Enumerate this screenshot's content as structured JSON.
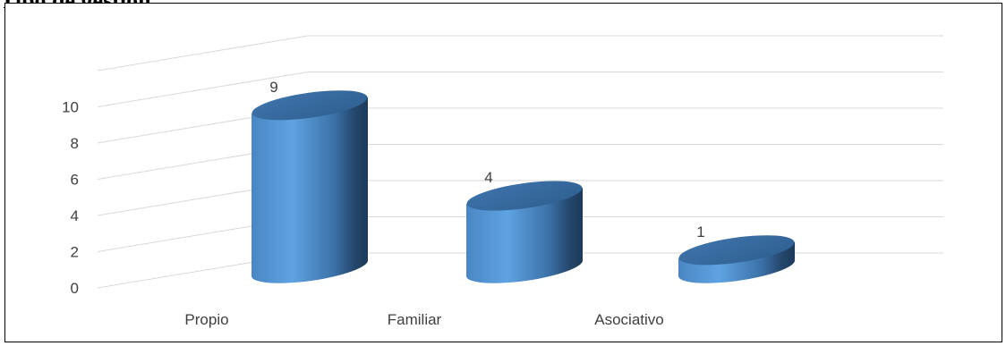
{
  "heading": "Tipo de gestión",
  "chart_data": {
    "type": "bar",
    "style": "3d-cylinder",
    "categories": [
      "Propio",
      "Familiar",
      "Asociativo"
    ],
    "values": [
      9,
      4,
      1
    ],
    "data_labels": [
      "9",
      "4",
      "1"
    ],
    "yticks": [
      "0",
      "2",
      "4",
      "6",
      "8",
      "10"
    ],
    "ylim": [
      0,
      10
    ],
    "title": "",
    "xlabel": "",
    "ylabel": "",
    "grid": true,
    "legend": "none",
    "bar_color": "#5b9bd5"
  }
}
